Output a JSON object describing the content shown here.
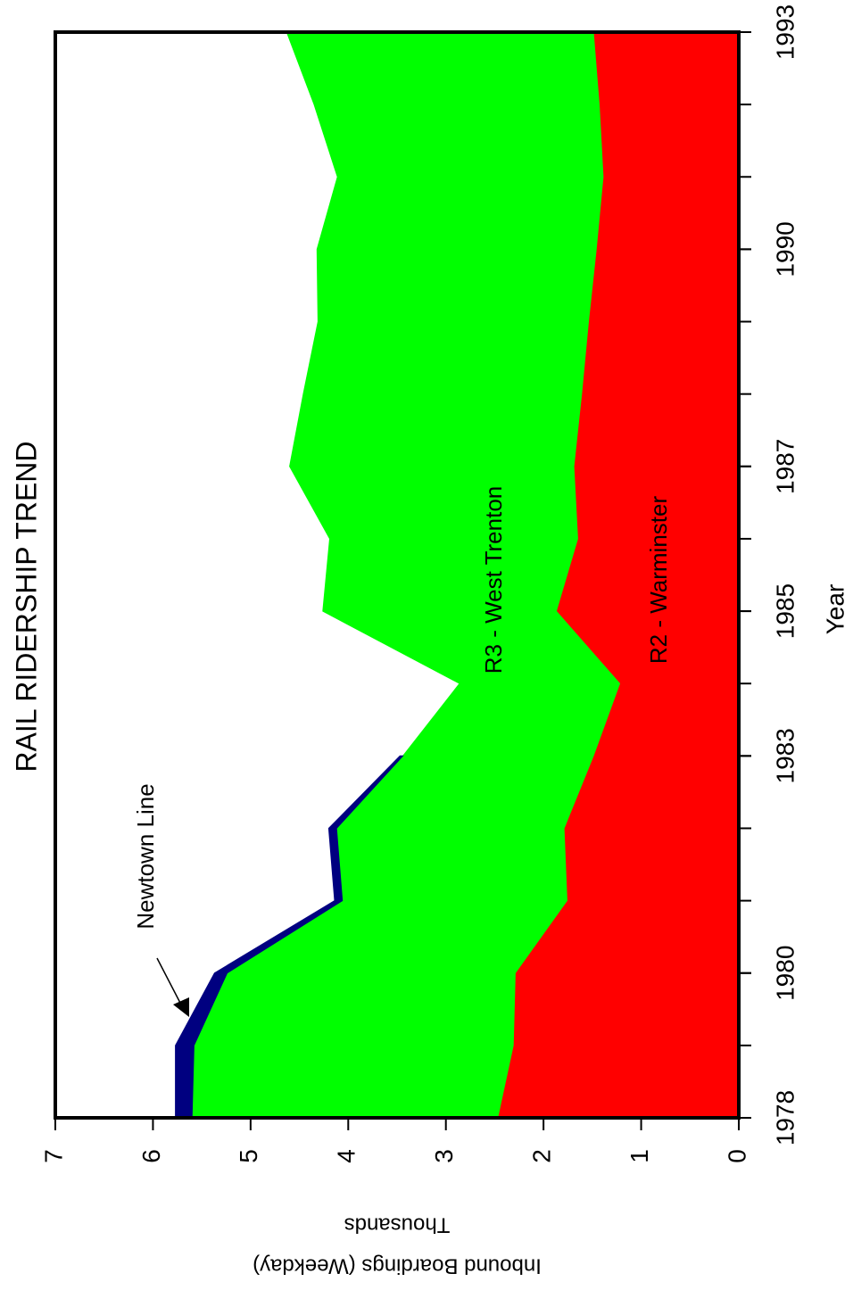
{
  "chart_data": {
    "type": "stacked_area",
    "title": "RAIL RIDERSHIP TREND",
    "xlabel": "Year",
    "ylabel": [
      "Inbound Boardings (Weekday)",
      "Thousands"
    ],
    "x": [
      1978,
      1979,
      1980,
      1981,
      1982,
      1983,
      1984,
      1985,
      1986,
      1987,
      1988,
      1989,
      1990,
      1991,
      1992,
      1993
    ],
    "series": [
      {
        "name": "R2 - Warminster",
        "color": "#ff0000",
        "values": [
          2.47,
          2.31,
          2.29,
          1.76,
          1.79,
          1.49,
          1.22,
          1.87,
          1.65,
          1.69,
          1.61,
          1.54,
          1.46,
          1.39,
          1.43,
          1.49
        ]
      },
      {
        "name": "R3 - West Trenton",
        "color": "#00ff00",
        "values": [
          3.13,
          3.27,
          2.95,
          2.3,
          2.33,
          1.95,
          1.64,
          2.39,
          2.54,
          2.91,
          2.85,
          2.77,
          2.86,
          2.72,
          2.92,
          3.14
        ]
      },
      {
        "name": "Newtown Line",
        "color": "#000080",
        "values": [
          0.17,
          0.19,
          0.13,
          0.08,
          0.08,
          0.03,
          null,
          null,
          null,
          null,
          null,
          null,
          null,
          null,
          null,
          null
        ]
      }
    ],
    "xlim": [
      1978,
      1993
    ],
    "xticks": [
      1978,
      1980,
      1983,
      1985,
      1987,
      1990,
      1993
    ],
    "ylim": [
      0,
      7
    ],
    "yticks": [
      0,
      1,
      2,
      3,
      4,
      5,
      6,
      7
    ]
  }
}
